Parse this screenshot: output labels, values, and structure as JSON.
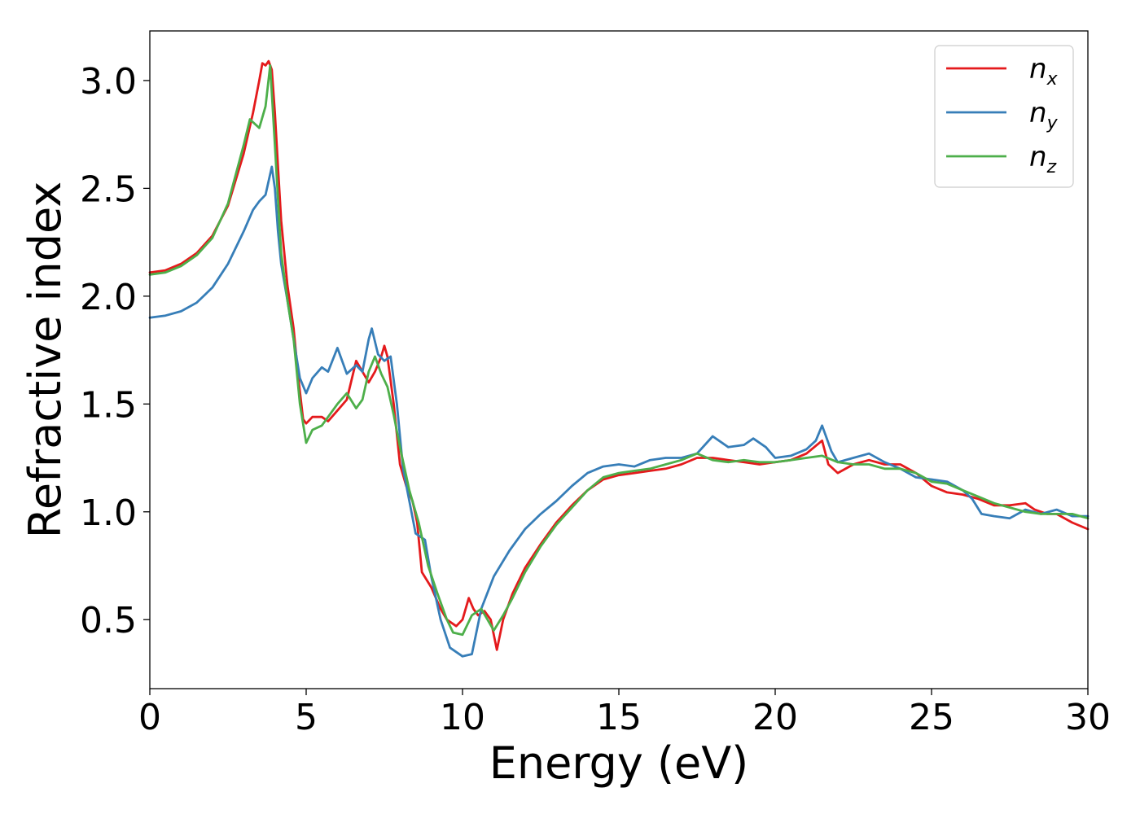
{
  "chart_data": {
    "type": "line",
    "xlabel": "Energy (eV)",
    "ylabel": "Refractive index",
    "xlim": [
      0,
      30
    ],
    "ylim": [
      0.18,
      3.23
    ],
    "x_ticks": [
      0,
      5,
      10,
      15,
      20,
      25,
      30
    ],
    "x_tick_labels": [
      "0",
      "5",
      "10",
      "15",
      "20",
      "25",
      "30"
    ],
    "y_ticks": [
      0.5,
      1.0,
      1.5,
      2.0,
      2.5,
      3.0
    ],
    "y_tick_labels": [
      "0.5",
      "1.0",
      "1.5",
      "2.0",
      "2.5",
      "3.0"
    ],
    "grid": false,
    "legend_position": "top-right",
    "series": [
      {
        "name": "n",
        "subscript": "x",
        "color": "#e41a1c",
        "points": [
          [
            0,
            2.11
          ],
          [
            0.5,
            2.12
          ],
          [
            1,
            2.15
          ],
          [
            1.5,
            2.2
          ],
          [
            2,
            2.28
          ],
          [
            2.5,
            2.42
          ],
          [
            3,
            2.66
          ],
          [
            3.3,
            2.85
          ],
          [
            3.5,
            3.0
          ],
          [
            3.6,
            3.08
          ],
          [
            3.7,
            3.07
          ],
          [
            3.8,
            3.09
          ],
          [
            3.9,
            3.05
          ],
          [
            4.0,
            2.85
          ],
          [
            4.1,
            2.6
          ],
          [
            4.2,
            2.35
          ],
          [
            4.4,
            2.05
          ],
          [
            4.6,
            1.85
          ],
          [
            4.75,
            1.62
          ],
          [
            4.9,
            1.43
          ],
          [
            5.0,
            1.41
          ],
          [
            5.2,
            1.44
          ],
          [
            5.5,
            1.44
          ],
          [
            5.7,
            1.42
          ],
          [
            6.0,
            1.47
          ],
          [
            6.3,
            1.52
          ],
          [
            6.6,
            1.7
          ],
          [
            6.8,
            1.65
          ],
          [
            7.0,
            1.6
          ],
          [
            7.2,
            1.65
          ],
          [
            7.4,
            1.72
          ],
          [
            7.5,
            1.77
          ],
          [
            7.6,
            1.72
          ],
          [
            7.8,
            1.5
          ],
          [
            8.0,
            1.22
          ],
          [
            8.2,
            1.12
          ],
          [
            8.4,
            1.05
          ],
          [
            8.55,
            0.95
          ],
          [
            8.7,
            0.72
          ],
          [
            9.0,
            0.65
          ],
          [
            9.3,
            0.55
          ],
          [
            9.5,
            0.5
          ],
          [
            9.8,
            0.47
          ],
          [
            10.0,
            0.5
          ],
          [
            10.2,
            0.6
          ],
          [
            10.35,
            0.55
          ],
          [
            10.5,
            0.52
          ],
          [
            10.7,
            0.54
          ],
          [
            10.9,
            0.5
          ],
          [
            11.1,
            0.36
          ],
          [
            11.3,
            0.5
          ],
          [
            11.6,
            0.62
          ],
          [
            12,
            0.74
          ],
          [
            12.5,
            0.85
          ],
          [
            13,
            0.95
          ],
          [
            13.5,
            1.03
          ],
          [
            14,
            1.1
          ],
          [
            14.5,
            1.15
          ],
          [
            15,
            1.17
          ],
          [
            15.5,
            1.18
          ],
          [
            16,
            1.19
          ],
          [
            16.5,
            1.2
          ],
          [
            17,
            1.22
          ],
          [
            17.5,
            1.25
          ],
          [
            18,
            1.25
          ],
          [
            18.5,
            1.24
          ],
          [
            19,
            1.23
          ],
          [
            19.5,
            1.22
          ],
          [
            20,
            1.23
          ],
          [
            20.5,
            1.24
          ],
          [
            21,
            1.27
          ],
          [
            21.5,
            1.33
          ],
          [
            21.7,
            1.22
          ],
          [
            22,
            1.18
          ],
          [
            22.5,
            1.22
          ],
          [
            23,
            1.24
          ],
          [
            23.5,
            1.22
          ],
          [
            24,
            1.22
          ],
          [
            24.5,
            1.18
          ],
          [
            25,
            1.12
          ],
          [
            25.5,
            1.09
          ],
          [
            26,
            1.08
          ],
          [
            26.5,
            1.06
          ],
          [
            27,
            1.03
          ],
          [
            27.5,
            1.03
          ],
          [
            28,
            1.04
          ],
          [
            28.3,
            1.01
          ],
          [
            28.7,
            0.99
          ],
          [
            29,
            0.99
          ],
          [
            29.5,
            0.95
          ],
          [
            30,
            0.92
          ]
        ]
      },
      {
        "name": "n",
        "subscript": "y",
        "color": "#377eb8",
        "points": [
          [
            0,
            1.9
          ],
          [
            0.5,
            1.91
          ],
          [
            1,
            1.93
          ],
          [
            1.5,
            1.97
          ],
          [
            2,
            2.04
          ],
          [
            2.5,
            2.15
          ],
          [
            3,
            2.3
          ],
          [
            3.3,
            2.4
          ],
          [
            3.5,
            2.44
          ],
          [
            3.7,
            2.47
          ],
          [
            3.9,
            2.6
          ],
          [
            4.0,
            2.5
          ],
          [
            4.1,
            2.3
          ],
          [
            4.2,
            2.15
          ],
          [
            4.4,
            1.98
          ],
          [
            4.6,
            1.8
          ],
          [
            4.8,
            1.62
          ],
          [
            5.0,
            1.55
          ],
          [
            5.2,
            1.62
          ],
          [
            5.5,
            1.67
          ],
          [
            5.7,
            1.65
          ],
          [
            6.0,
            1.76
          ],
          [
            6.3,
            1.64
          ],
          [
            6.6,
            1.68
          ],
          [
            6.8,
            1.65
          ],
          [
            7.0,
            1.8
          ],
          [
            7.1,
            1.85
          ],
          [
            7.3,
            1.73
          ],
          [
            7.5,
            1.7
          ],
          [
            7.7,
            1.72
          ],
          [
            7.9,
            1.5
          ],
          [
            8.1,
            1.2
          ],
          [
            8.3,
            1.05
          ],
          [
            8.5,
            0.9
          ],
          [
            8.8,
            0.87
          ],
          [
            9.0,
            0.7
          ],
          [
            9.3,
            0.5
          ],
          [
            9.6,
            0.37
          ],
          [
            10.0,
            0.33
          ],
          [
            10.3,
            0.34
          ],
          [
            10.6,
            0.55
          ],
          [
            11.0,
            0.7
          ],
          [
            11.5,
            0.82
          ],
          [
            12,
            0.92
          ],
          [
            12.5,
            0.99
          ],
          [
            13,
            1.05
          ],
          [
            13.5,
            1.12
          ],
          [
            14,
            1.18
          ],
          [
            14.5,
            1.21
          ],
          [
            15,
            1.22
          ],
          [
            15.5,
            1.21
          ],
          [
            16,
            1.24
          ],
          [
            16.5,
            1.25
          ],
          [
            17,
            1.25
          ],
          [
            17.5,
            1.27
          ],
          [
            18,
            1.35
          ],
          [
            18.5,
            1.3
          ],
          [
            19,
            1.31
          ],
          [
            19.3,
            1.34
          ],
          [
            19.7,
            1.3
          ],
          [
            20,
            1.25
          ],
          [
            20.5,
            1.26
          ],
          [
            21,
            1.29
          ],
          [
            21.3,
            1.33
          ],
          [
            21.5,
            1.4
          ],
          [
            21.8,
            1.28
          ],
          [
            22,
            1.23
          ],
          [
            22.5,
            1.25
          ],
          [
            23,
            1.27
          ],
          [
            23.5,
            1.23
          ],
          [
            24,
            1.2
          ],
          [
            24.5,
            1.16
          ],
          [
            25,
            1.15
          ],
          [
            25.5,
            1.14
          ],
          [
            26,
            1.1
          ],
          [
            26.3,
            1.06
          ],
          [
            26.6,
            0.99
          ],
          [
            27,
            0.98
          ],
          [
            27.5,
            0.97
          ],
          [
            28,
            1.01
          ],
          [
            28.5,
            0.99
          ],
          [
            29,
            1.01
          ],
          [
            29.5,
            0.98
          ],
          [
            30,
            0.98
          ]
        ]
      },
      {
        "name": "n",
        "subscript": "z",
        "color": "#4daf4a",
        "points": [
          [
            0,
            2.1
          ],
          [
            0.5,
            2.11
          ],
          [
            1,
            2.14
          ],
          [
            1.5,
            2.19
          ],
          [
            2,
            2.27
          ],
          [
            2.5,
            2.43
          ],
          [
            3,
            2.7
          ],
          [
            3.2,
            2.82
          ],
          [
            3.5,
            2.78
          ],
          [
            3.7,
            2.88
          ],
          [
            3.85,
            3.07
          ],
          [
            4.0,
            2.7
          ],
          [
            4.1,
            2.45
          ],
          [
            4.2,
            2.2
          ],
          [
            4.4,
            1.98
          ],
          [
            4.6,
            1.8
          ],
          [
            4.8,
            1.5
          ],
          [
            5.0,
            1.32
          ],
          [
            5.2,
            1.38
          ],
          [
            5.5,
            1.4
          ],
          [
            5.7,
            1.44
          ],
          [
            6.0,
            1.5
          ],
          [
            6.3,
            1.55
          ],
          [
            6.6,
            1.48
          ],
          [
            6.8,
            1.52
          ],
          [
            7.0,
            1.65
          ],
          [
            7.2,
            1.72
          ],
          [
            7.4,
            1.64
          ],
          [
            7.6,
            1.58
          ],
          [
            7.8,
            1.45
          ],
          [
            8.0,
            1.3
          ],
          [
            8.3,
            1.1
          ],
          [
            8.6,
            0.95
          ],
          [
            8.9,
            0.75
          ],
          [
            9.2,
            0.62
          ],
          [
            9.5,
            0.5
          ],
          [
            9.7,
            0.44
          ],
          [
            10.0,
            0.43
          ],
          [
            10.3,
            0.52
          ],
          [
            10.6,
            0.55
          ],
          [
            10.8,
            0.5
          ],
          [
            11.0,
            0.45
          ],
          [
            11.3,
            0.52
          ],
          [
            11.6,
            0.6
          ],
          [
            12,
            0.72
          ],
          [
            12.5,
            0.84
          ],
          [
            13,
            0.94
          ],
          [
            13.5,
            1.02
          ],
          [
            14,
            1.1
          ],
          [
            14.5,
            1.16
          ],
          [
            15,
            1.18
          ],
          [
            15.5,
            1.19
          ],
          [
            16,
            1.2
          ],
          [
            16.5,
            1.22
          ],
          [
            17,
            1.24
          ],
          [
            17.5,
            1.27
          ],
          [
            18,
            1.24
          ],
          [
            18.5,
            1.23
          ],
          [
            19,
            1.24
          ],
          [
            19.5,
            1.23
          ],
          [
            20,
            1.23
          ],
          [
            20.5,
            1.24
          ],
          [
            21,
            1.25
          ],
          [
            21.5,
            1.26
          ],
          [
            22,
            1.23
          ],
          [
            22.5,
            1.22
          ],
          [
            23,
            1.22
          ],
          [
            23.5,
            1.2
          ],
          [
            24,
            1.2
          ],
          [
            24.5,
            1.18
          ],
          [
            25,
            1.14
          ],
          [
            25.5,
            1.13
          ],
          [
            26,
            1.1
          ],
          [
            26.5,
            1.07
          ],
          [
            27,
            1.04
          ],
          [
            27.5,
            1.02
          ],
          [
            28,
            1.0
          ],
          [
            28.5,
            0.99
          ],
          [
            29,
            0.99
          ],
          [
            29.5,
            0.99
          ],
          [
            30,
            0.97
          ]
        ]
      }
    ]
  }
}
